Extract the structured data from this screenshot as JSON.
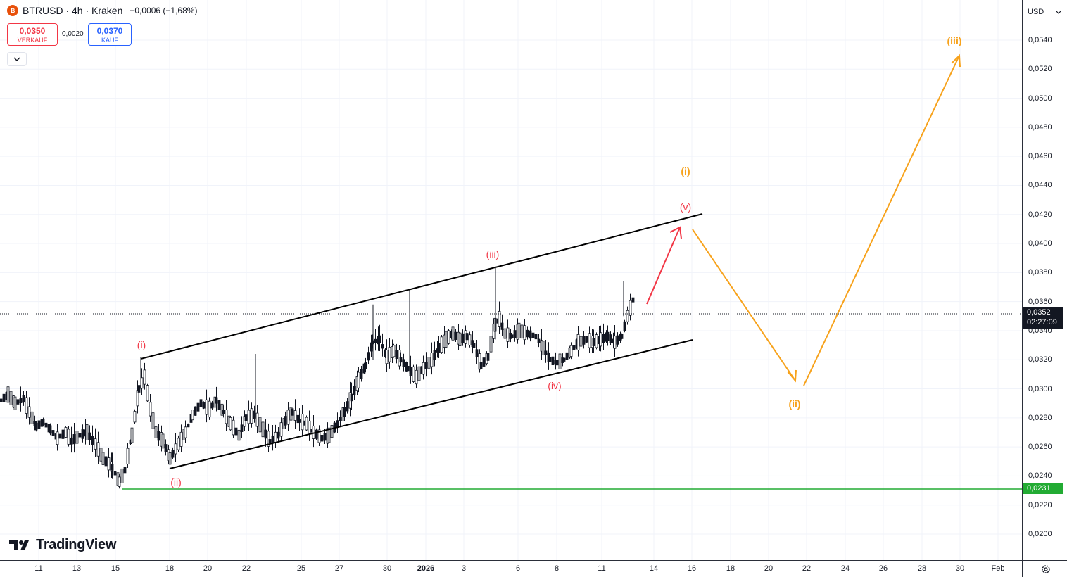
{
  "header": {
    "symbol_logo": "₿",
    "title": "BTRUSD · 4h · Kraken",
    "change": "−0,0006 (−1,68%)"
  },
  "quote": {
    "sell_price": "0,0350",
    "sell_label": "VERKAUF",
    "spread": "0,0020",
    "buy_price": "0,0370",
    "buy_label": "KAUF"
  },
  "currency_selector": "USD",
  "price_axis": {
    "ticks": [
      "0,0540",
      "0,0520",
      "0,0500",
      "0,0480",
      "0,0460",
      "0,0440",
      "0,0420",
      "0,0400",
      "0,0380",
      "0,0360",
      "0,0340",
      "0,0320",
      "0,0300",
      "0,0280",
      "0,0260",
      "0,0240",
      "0,0220",
      "0,0200"
    ],
    "current_price": "0,0352",
    "countdown": "02:27:09",
    "support_price": "0,0231"
  },
  "time_axis": {
    "ticks": [
      "11",
      "13",
      "15",
      "18",
      "20",
      "22",
      "25",
      "27",
      "30",
      "2026",
      "3",
      "6",
      "8",
      "11",
      "14",
      "16",
      "18",
      "20",
      "22",
      "24",
      "26",
      "28",
      "30",
      "Feb"
    ]
  },
  "brand": "TradingView",
  "wave_labels": {
    "red": [
      "(i)",
      "(ii)",
      "(iii)",
      "(iv)",
      "(v)"
    ],
    "orange": [
      "(i)",
      "(ii)",
      "(iii)"
    ]
  },
  "colors": {
    "bullish_candle": "#ffffff",
    "bearish_candle": "#131722",
    "wave_red": "#f23645",
    "wave_orange": "#f7a21b",
    "support_line": "#22ab33",
    "channel": "#000000"
  }
}
